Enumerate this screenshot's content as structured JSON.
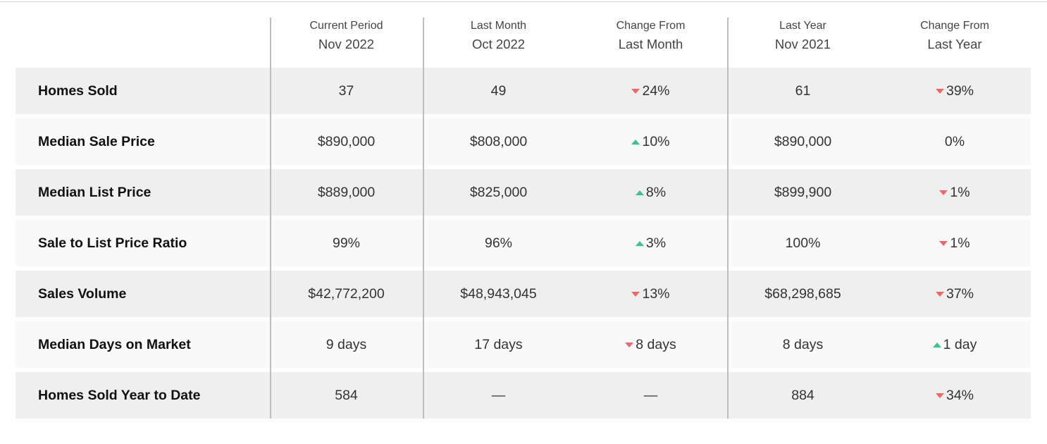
{
  "table": {
    "columns": [
      {
        "line1": "Current Period",
        "line2": "Nov 2022"
      },
      {
        "line1": "Last Month",
        "line2": "Oct 2022"
      },
      {
        "line1": "Change From",
        "line2": "Last Month"
      },
      {
        "line1": "Last Year",
        "line2": "Nov 2021"
      },
      {
        "line1": "Change From",
        "line2": "Last Year"
      }
    ],
    "rows": [
      {
        "label": "Homes Sold",
        "cells": [
          "37",
          "49",
          {
            "text": "24%",
            "trend": "down"
          },
          "61",
          {
            "text": "39%",
            "trend": "down"
          }
        ]
      },
      {
        "label": "Median Sale Price",
        "cells": [
          "$890,000",
          "$808,000",
          {
            "text": "10%",
            "trend": "up"
          },
          "$890,000",
          "0%"
        ]
      },
      {
        "label": "Median List Price",
        "cells": [
          "$889,000",
          "$825,000",
          {
            "text": "8%",
            "trend": "up"
          },
          "$899,900",
          {
            "text": "1%",
            "trend": "down"
          }
        ]
      },
      {
        "label": "Sale to List Price Ratio",
        "cells": [
          "99%",
          "96%",
          {
            "text": "3%",
            "trend": "up"
          },
          "100%",
          {
            "text": "1%",
            "trend": "down"
          }
        ]
      },
      {
        "label": "Sales Volume",
        "cells": [
          "$42,772,200",
          "$48,943,045",
          {
            "text": "13%",
            "trend": "down"
          },
          "$68,298,685",
          {
            "text": "37%",
            "trend": "down"
          }
        ]
      },
      {
        "label": "Median Days on Market",
        "cells": [
          "9 days",
          "17 days",
          {
            "text": "8 days",
            "trend": "down"
          },
          "8 days",
          {
            "text": "1 day",
            "trend": "up"
          }
        ]
      },
      {
        "label": "Homes Sold Year to Date",
        "cells": [
          "584",
          "—",
          "—",
          "884",
          {
            "text": "34%",
            "trend": "down"
          }
        ]
      }
    ]
  }
}
